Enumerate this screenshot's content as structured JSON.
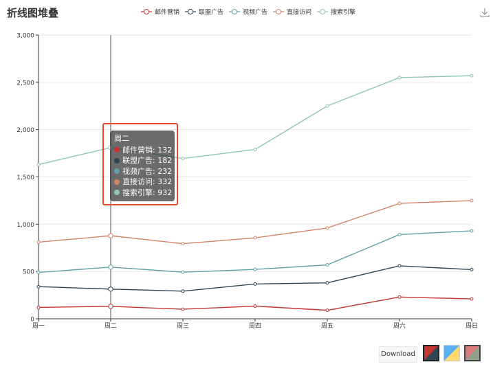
{
  "title": "折线图堆叠",
  "chart_data": {
    "type": "line",
    "categories": [
      "周一",
      "周二",
      "周三",
      "周四",
      "周五",
      "周六",
      "周日"
    ],
    "stacked": true,
    "ylim": [
      0,
      3000
    ],
    "yticks": [
      "0",
      "500",
      "1,000",
      "1,500",
      "2,000",
      "2,500",
      "3,000"
    ],
    "ytick_values": [
      0,
      500,
      1000,
      1500,
      2000,
      2500,
      3000
    ],
    "grid": true,
    "legend_position": "top-center",
    "series": [
      {
        "name": "邮件营销",
        "color": "#c23531",
        "values": [
          120,
          132,
          101,
          134,
          90,
          230,
          210
        ]
      },
      {
        "name": "联盟广告",
        "color": "#2f4554",
        "values": [
          220,
          182,
          191,
          234,
          290,
          330,
          310
        ]
      },
      {
        "name": "视频广告",
        "color": "#61a0a8",
        "values": [
          150,
          232,
          201,
          154,
          190,
          330,
          410
        ]
      },
      {
        "name": "直接访问",
        "color": "#d48265",
        "values": [
          320,
          332,
          301,
          334,
          390,
          330,
          320
        ]
      },
      {
        "name": "搜索引擎",
        "color": "#91c7ae",
        "values": [
          820,
          932,
          901,
          934,
          1290,
          1330,
          1320
        ]
      }
    ]
  },
  "tooltip": {
    "header": "周二",
    "rows": [
      {
        "label": "邮件营销: 132",
        "color": "#c23531"
      },
      {
        "label": "联盟广告: 182",
        "color": "#2f4554"
      },
      {
        "label": "视频广告: 232",
        "color": "#61a0a8"
      },
      {
        "label": "直接访问: 332",
        "color": "#d48265"
      },
      {
        "label": "搜索引擎: 932",
        "color": "#91c7ae"
      }
    ]
  },
  "toolbar": {
    "download_label": "Download",
    "save_icon": "download-icon"
  },
  "themes": [
    "dark-red-theme",
    "blue-yellow-theme",
    "rose-gray-theme"
  ]
}
